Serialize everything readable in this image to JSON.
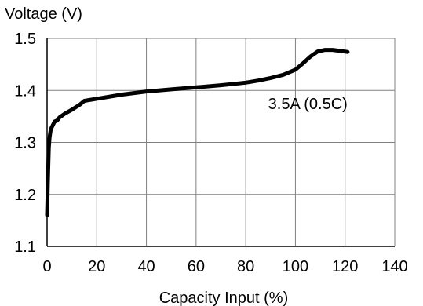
{
  "chart_data": {
    "type": "line",
    "title": "",
    "ylabel": "Voltage (V)",
    "xlabel": "Capacity Input (%)",
    "xlim": [
      0,
      140
    ],
    "ylim": [
      1.1,
      1.5
    ],
    "xticks": [
      0,
      20,
      40,
      60,
      80,
      100,
      120,
      140
    ],
    "yticks": [
      1.1,
      1.2,
      1.3,
      1.4,
      1.5
    ],
    "ytick_labels": [
      "1.1",
      "1.2",
      "1.3",
      "1.4",
      "1.5"
    ],
    "xtick_labels": [
      "0",
      "20",
      "40",
      "60",
      "80",
      "100",
      "120",
      "140"
    ],
    "grid": true,
    "legend": "none",
    "annotations": [
      {
        "text": "3.5A (0.5C)",
        "x": 105,
        "y": 1.375
      }
    ],
    "series": [
      {
        "line_color": "#000000",
        "x": [
          0,
          0.3,
          0.7,
          1,
          1.5,
          2,
          3,
          4,
          5,
          7,
          10,
          13,
          14,
          15,
          20,
          30,
          40,
          50,
          60,
          70,
          80,
          85,
          90,
          95,
          100,
          103,
          106,
          109,
          112,
          115,
          118,
          121
        ],
        "y": [
          1.16,
          1.22,
          1.29,
          1.31,
          1.325,
          1.33,
          1.34,
          1.342,
          1.348,
          1.355,
          1.363,
          1.372,
          1.376,
          1.38,
          1.384,
          1.392,
          1.398,
          1.402,
          1.406,
          1.41,
          1.415,
          1.419,
          1.424,
          1.43,
          1.44,
          1.452,
          1.465,
          1.475,
          1.478,
          1.478,
          1.476,
          1.474
        ]
      }
    ]
  }
}
